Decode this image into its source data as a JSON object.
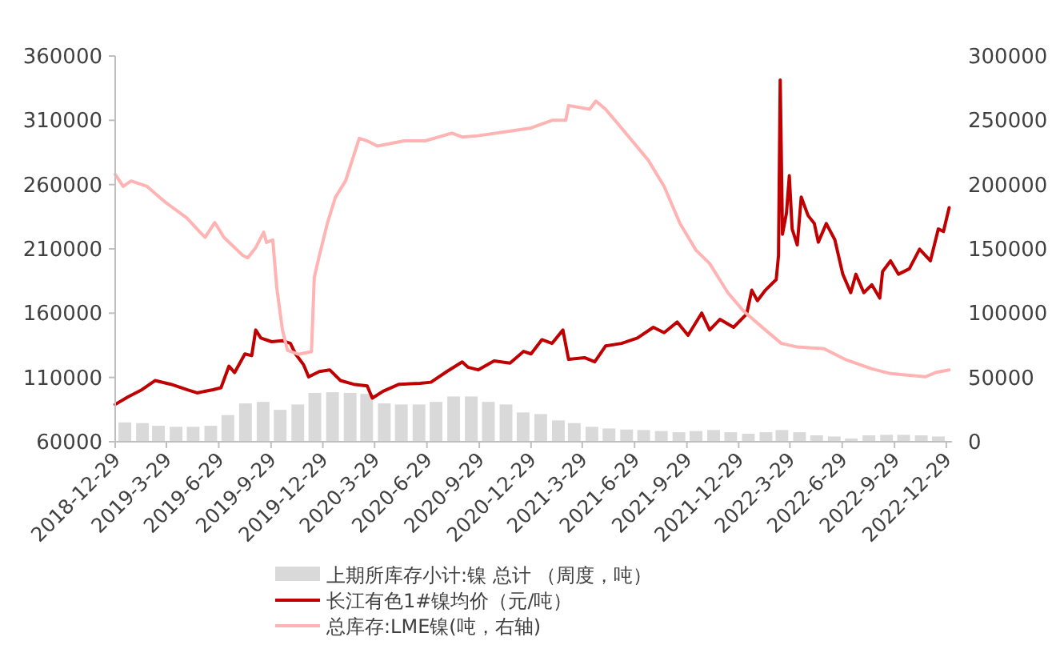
{
  "chart_data": {
    "type": "line",
    "xlim": [
      "2018-12-29",
      "2023-01-08"
    ],
    "xticks": [
      {
        "value": "2018-12-29",
        "label": "2018-12-29"
      },
      {
        "value": "2019-03-29",
        "label": "2019-3-29"
      },
      {
        "value": "2019-06-29",
        "label": "2019-6-29"
      },
      {
        "value": "2019-09-29",
        "label": "2019-9-29"
      },
      {
        "value": "2019-12-29",
        "label": "2019-12-29"
      },
      {
        "value": "2020-03-29",
        "label": "2020-3-29"
      },
      {
        "value": "2020-06-29",
        "label": "2020-6-29"
      },
      {
        "value": "2020-09-29",
        "label": "2020-9-29"
      },
      {
        "value": "2020-12-29",
        "label": "2020-12-29"
      },
      {
        "value": "2021-03-29",
        "label": "2021-3-29"
      },
      {
        "value": "2021-06-29",
        "label": "2021-6-29"
      },
      {
        "value": "2021-09-29",
        "label": "2021-9-29"
      },
      {
        "value": "2021-12-29",
        "label": "2021-12-29"
      },
      {
        "value": "2022-03-29",
        "label": "2022-3-29"
      },
      {
        "value": "2022-06-29",
        "label": "2022-6-29"
      },
      {
        "value": "2022-09-29",
        "label": "2022-9-29"
      },
      {
        "value": "2022-12-29",
        "label": "2022-12-29"
      }
    ],
    "ylim": [
      60000,
      360000
    ],
    "yticks": [
      60000,
      110000,
      160000,
      210000,
      260000,
      310000,
      360000
    ],
    "y2lim": [
      0,
      300000
    ],
    "y2ticks": [
      0,
      50000,
      100000,
      150000,
      200000,
      250000,
      300000
    ],
    "legend": "bottom",
    "series": [
      {
        "name": "上期所库存小计:镍  总计 （周度，吨）",
        "type": "bar",
        "axis": "y2",
        "color": "#d9d9d9",
        "x": [
          "2019-01-15",
          "2019-02-15",
          "2019-03-15",
          "2019-04-15",
          "2019-05-15",
          "2019-06-15",
          "2019-07-15",
          "2019-08-15",
          "2019-09-15",
          "2019-10-15",
          "2019-11-15",
          "2019-12-15",
          "2020-01-15",
          "2020-02-15",
          "2020-03-15",
          "2020-04-15",
          "2020-05-15",
          "2020-06-15",
          "2020-07-15",
          "2020-08-15",
          "2020-09-15",
          "2020-10-15",
          "2020-11-15",
          "2020-12-15",
          "2021-01-15",
          "2021-02-15",
          "2021-03-15",
          "2021-04-15",
          "2021-05-15",
          "2021-06-15",
          "2021-07-15",
          "2021-08-15",
          "2021-09-15",
          "2021-10-15",
          "2021-11-15",
          "2021-12-15",
          "2022-01-15",
          "2022-02-15",
          "2022-03-15",
          "2022-04-15",
          "2022-05-15",
          "2022-06-15",
          "2022-07-15",
          "2022-08-15",
          "2022-09-15",
          "2022-10-15",
          "2022-11-15",
          "2022-12-15"
        ],
        "values": [
          15000,
          14500,
          12400,
          11600,
          11600,
          12400,
          20700,
          29800,
          31000,
          24800,
          29000,
          38000,
          38500,
          38000,
          37200,
          29800,
          29000,
          29000,
          31000,
          35200,
          35200,
          31000,
          29000,
          22800,
          21500,
          16600,
          14500,
          11600,
          10300,
          9500,
          9100,
          8300,
          7400,
          8300,
          9100,
          7400,
          6200,
          7400,
          9100,
          7400,
          5000,
          4100,
          2500,
          5000,
          5400,
          5400,
          5000,
          4100
        ]
      },
      {
        "name": "长江有色1#镍均价（元/吨）",
        "axis": "y",
        "color": "#c00000",
        "x": [
          "2018-12-29",
          "2019-01-21",
          "2019-02-14",
          "2019-03-09",
          "2019-04-06",
          "2019-05-04",
          "2019-05-22",
          "2019-06-19",
          "2019-07-03",
          "2019-07-17",
          "2019-07-27",
          "2019-08-14",
          "2019-08-26",
          "2019-09-02",
          "2019-09-11",
          "2019-09-30",
          "2019-10-19",
          "2019-11-02",
          "2019-11-11",
          "2019-11-25",
          "2019-12-04",
          "2019-12-23",
          "2020-01-10",
          "2020-01-29",
          "2020-02-21",
          "2020-03-16",
          "2020-03-25",
          "2020-04-13",
          "2020-05-11",
          "2020-06-17",
          "2020-07-06",
          "2020-08-03",
          "2020-08-30",
          "2020-09-09",
          "2020-09-27",
          "2020-10-25",
          "2020-11-22",
          "2020-12-16",
          "2020-12-29",
          "2021-01-17",
          "2021-02-04",
          "2021-02-23",
          "2021-03-05",
          "2021-04-02",
          "2021-04-20",
          "2021-05-09",
          "2021-06-06",
          "2021-07-04",
          "2021-08-01",
          "2021-08-20",
          "2021-09-12",
          "2021-10-01",
          "2021-10-25",
          "2021-11-08",
          "2021-11-26",
          "2021-12-20",
          "2022-01-12",
          "2022-01-21",
          "2022-01-31",
          "2022-02-14",
          "2022-03-05",
          "2022-03-09",
          "2022-03-12",
          "2022-03-16",
          "2022-03-23",
          "2022-03-28",
          "2022-04-02",
          "2022-04-11",
          "2022-04-18",
          "2022-04-30",
          "2022-05-11",
          "2022-05-18",
          "2022-06-01",
          "2022-06-16",
          "2022-06-30",
          "2022-07-14",
          "2022-07-23",
          "2022-08-06",
          "2022-08-20",
          "2022-09-03",
          "2022-09-08",
          "2022-09-22",
          "2022-10-06",
          "2022-10-25",
          "2022-11-12",
          "2022-12-01",
          "2022-12-15",
          "2022-12-24",
          "2023-01-03"
        ],
        "values": [
          89000,
          95000,
          100500,
          107600,
          104700,
          100500,
          98000,
          100500,
          102000,
          118800,
          113800,
          128300,
          127000,
          146900,
          140700,
          137800,
          138600,
          136500,
          128300,
          120000,
          110500,
          114600,
          115900,
          107600,
          104700,
          103400,
          93900,
          99300,
          104700,
          105500,
          106300,
          114600,
          122100,
          118000,
          115900,
          122900,
          121200,
          130300,
          128300,
          139400,
          136500,
          146900,
          124100,
          125400,
          122100,
          134500,
          136500,
          140700,
          149000,
          144800,
          153100,
          142800,
          160100,
          146900,
          155200,
          149000,
          159300,
          177900,
          169700,
          177900,
          186200,
          204800,
          341400,
          221400,
          237900,
          266900,
          225500,
          213100,
          250300,
          235900,
          229700,
          215200,
          229700,
          217200,
          190300,
          175900,
          190300,
          175900,
          182100,
          171700,
          192400,
          200700,
          190300,
          194500,
          209800,
          200700,
          225500,
          223500,
          242100
        ]
      },
      {
        "name": "总库存:LME镍(吨，右轴)",
        "axis": "y2",
        "color": "#ffb3b3",
        "x": [
          "2018-12-29",
          "2019-01-12",
          "2019-01-26",
          "2019-02-23",
          "2019-03-28",
          "2019-05-04",
          "2019-05-27",
          "2019-06-05",
          "2019-06-22",
          "2019-07-08",
          "2019-08-10",
          "2019-08-19",
          "2019-09-02",
          "2019-09-16",
          "2019-09-21",
          "2019-10-02",
          "2019-10-09",
          "2019-10-19",
          "2019-10-28",
          "2019-11-16",
          "2019-12-09",
          "2019-12-14",
          "2019-12-23",
          "2020-01-06",
          "2020-01-20",
          "2020-02-07",
          "2020-03-02",
          "2020-03-16",
          "2020-04-03",
          "2020-05-20",
          "2020-06-26",
          "2020-08-12",
          "2020-08-30",
          "2020-09-27",
          "2020-11-13",
          "2020-12-29",
          "2021-02-04",
          "2021-02-28",
          "2021-03-05",
          "2021-04-11",
          "2021-04-22",
          "2021-05-09",
          "2021-06-06",
          "2021-07-23",
          "2021-08-20",
          "2021-09-17",
          "2021-10-15",
          "2021-11-08",
          "2021-12-10",
          "2022-01-07",
          "2022-02-14",
          "2022-03-14",
          "2022-04-11",
          "2022-05-28",
          "2022-07-04",
          "2022-08-20",
          "2022-09-22",
          "2022-10-25",
          "2022-11-22",
          "2022-12-10",
          "2023-01-03"
        ],
        "values": [
          208000,
          198600,
          202800,
          198600,
          186000,
          174000,
          163000,
          159000,
          170500,
          159000,
          145000,
          143000,
          151000,
          163000,
          155000,
          157000,
          120000,
          87000,
          71000,
          68000,
          70000,
          128000,
          145000,
          170000,
          190000,
          203000,
          236000,
          234000,
          230000,
          234000,
          234000,
          240000,
          237000,
          238000,
          241000,
          244000,
          250000,
          250000,
          261500,
          258600,
          265000,
          258600,
          244000,
          219000,
          198600,
          169600,
          149000,
          138600,
          115900,
          101400,
          86900,
          76500,
          73700,
          72400,
          64100,
          56700,
          53000,
          51700,
          50500,
          53800,
          55900
        ]
      }
    ]
  }
}
